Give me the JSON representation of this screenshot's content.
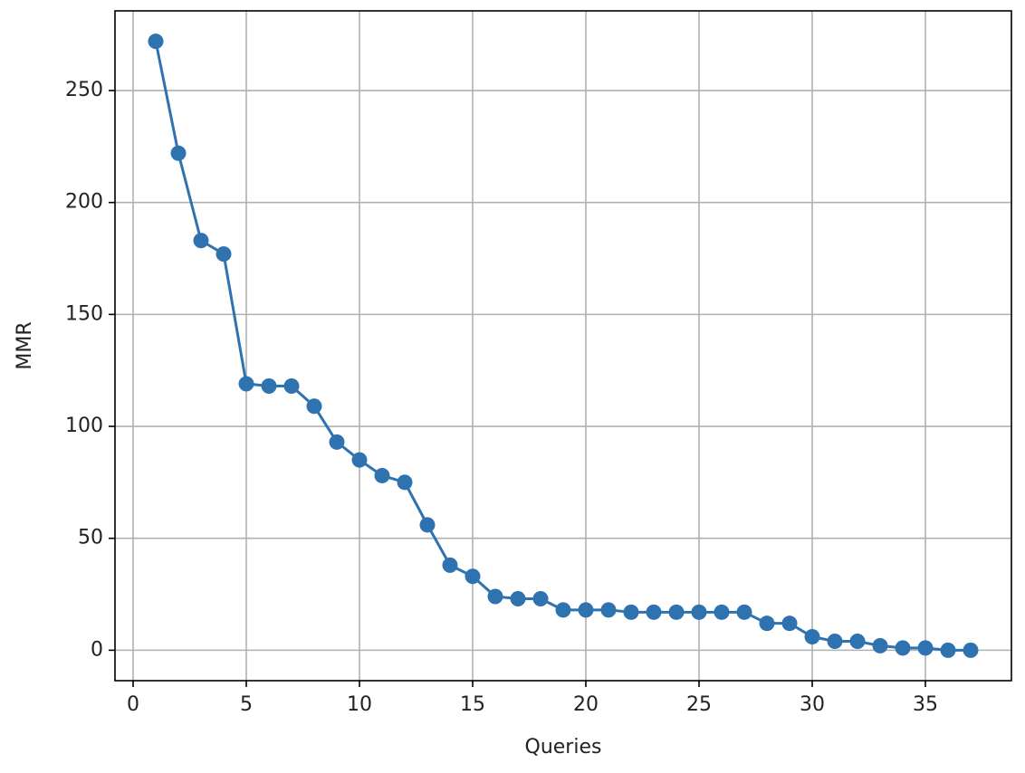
{
  "chart_data": {
    "type": "line",
    "xlabel": "Queries",
    "ylabel": "MMR",
    "x": [
      1,
      2,
      3,
      4,
      5,
      6,
      7,
      8,
      9,
      10,
      11,
      12,
      13,
      14,
      15,
      16,
      17,
      18,
      19,
      20,
      21,
      22,
      23,
      24,
      25,
      26,
      27,
      28,
      29,
      30,
      31,
      32,
      33,
      34,
      35,
      36,
      37
    ],
    "values": [
      272,
      222,
      183,
      177,
      119,
      118,
      118,
      109,
      93,
      85,
      78,
      75,
      56,
      38,
      33,
      24,
      23,
      23,
      18,
      18,
      18,
      17,
      17,
      17,
      17,
      17,
      17,
      12,
      12,
      6,
      4,
      4,
      2,
      1,
      1,
      0,
      0
    ],
    "color": "#2f72b0",
    "xlim": [
      -0.8,
      38.8
    ],
    "xticks": [
      0,
      5,
      10,
      15,
      20,
      25,
      30,
      35
    ],
    "ylim": [
      -13.6,
      285.6
    ],
    "yticks": [
      0,
      50,
      100,
      150,
      200,
      250
    ],
    "grid": true
  }
}
